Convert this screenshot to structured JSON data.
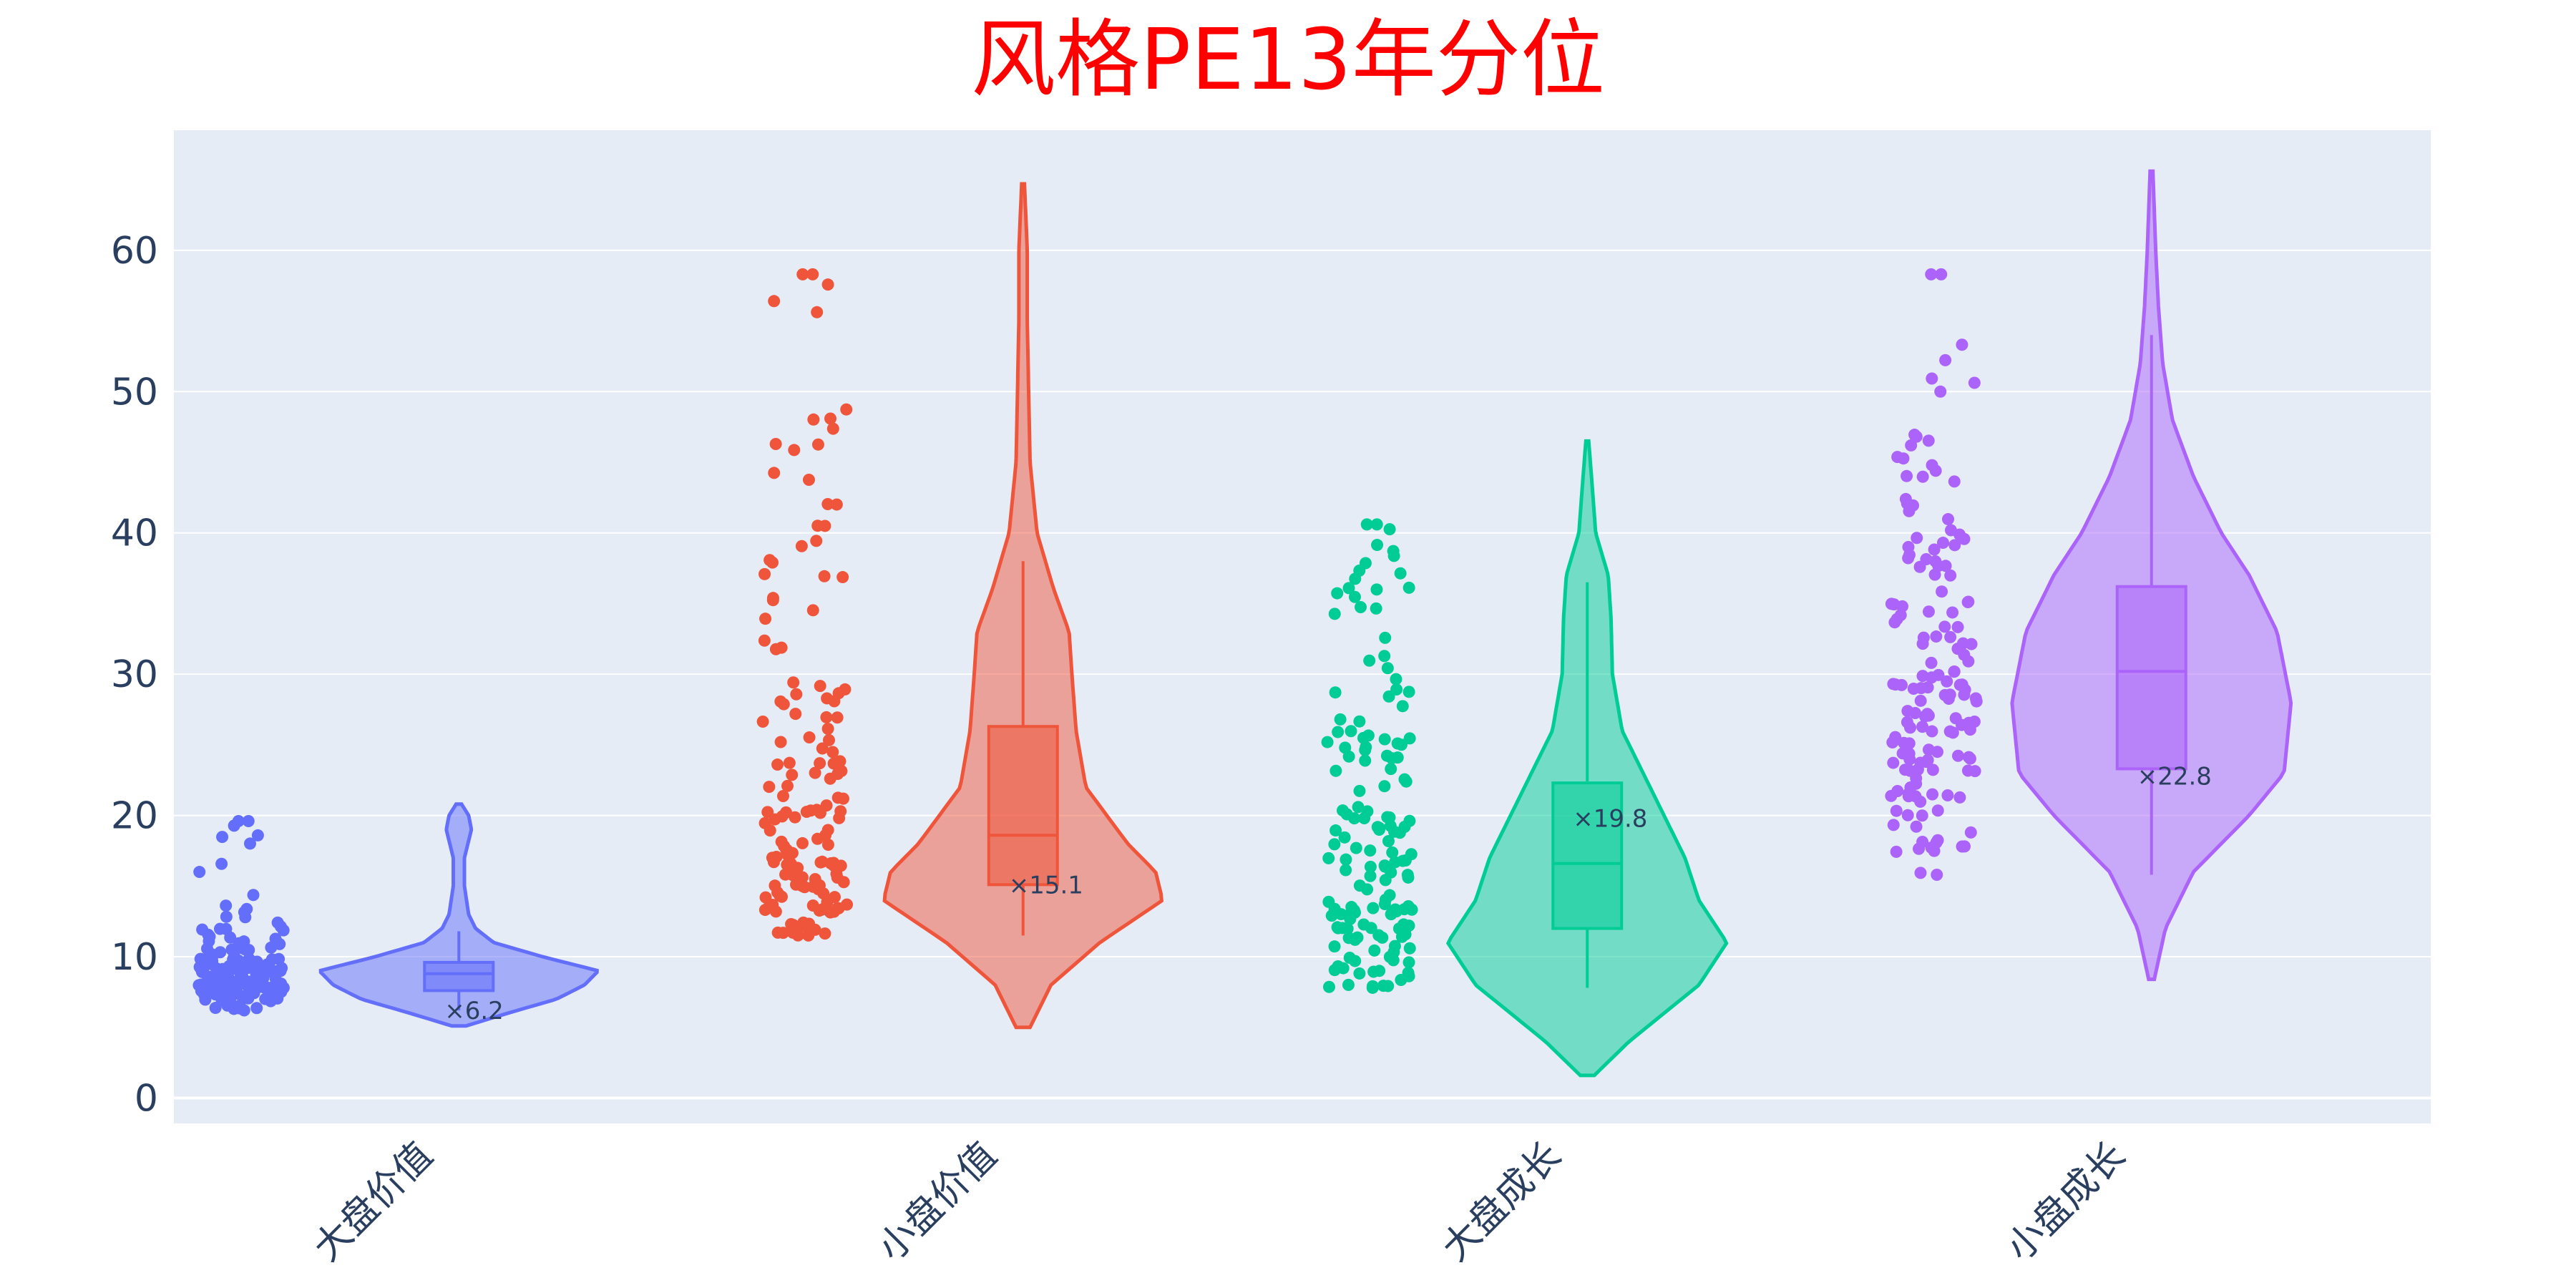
{
  "chart_data": {
    "type": "violin",
    "title": "风格PE13年分位",
    "xlabel": "",
    "ylabel": "",
    "ylim": [
      -1.8,
      68.5
    ],
    "y_ticks": [
      0,
      10,
      20,
      30,
      40,
      50,
      60
    ],
    "categories": [
      "大盘价值",
      "小盘价值",
      "大盘成长",
      "小盘成长"
    ],
    "grid": true,
    "series": [
      {
        "category": "大盘价值",
        "color": "#636efa",
        "violin_min": 5.1,
        "violin_max": 20.8,
        "box": {
          "q1": 7.6,
          "median": 8.8,
          "q3": 9.6,
          "whisker_low": 6.2,
          "whisker_high": 11.8
        },
        "min_label": "×6.2",
        "points_range": [
          6.2,
          19.6
        ],
        "density": [
          [
            5.1,
            0.05
          ],
          [
            6,
            0.35
          ],
          [
            7,
            0.7
          ],
          [
            8,
            0.9
          ],
          [
            9,
            1.0
          ],
          [
            10,
            0.6
          ],
          [
            11,
            0.25
          ],
          [
            12,
            0.12
          ],
          [
            13,
            0.07
          ],
          [
            15,
            0.04
          ],
          [
            17,
            0.04
          ],
          [
            19,
            0.09
          ],
          [
            20,
            0.07
          ],
          [
            20.8,
            0.02
          ]
        ]
      },
      {
        "category": "小盘价值",
        "color": "#ef553b",
        "violin_min": 5.0,
        "violin_max": 64.7,
        "box": {
          "q1": 15.1,
          "median": 18.6,
          "q3": 26.3,
          "whisker_low": 11.5,
          "whisker_high": 38.0
        },
        "min_label": "×15.1",
        "points_range": [
          11.5,
          58.3
        ],
        "density": [
          [
            5,
            0.05
          ],
          [
            8,
            0.2
          ],
          [
            11,
            0.55
          ],
          [
            14,
            1.0
          ],
          [
            16,
            0.95
          ],
          [
            18,
            0.75
          ],
          [
            22,
            0.45
          ],
          [
            26,
            0.38
          ],
          [
            30,
            0.35
          ],
          [
            33,
            0.33
          ],
          [
            36,
            0.22
          ],
          [
            40,
            0.1
          ],
          [
            45,
            0.05
          ],
          [
            55,
            0.03
          ],
          [
            60,
            0.03
          ],
          [
            64.7,
            0.01
          ]
        ]
      },
      {
        "category": "大盘成长",
        "color": "#00cc96",
        "violin_min": 1.6,
        "violin_max": 46.5,
        "box": {
          "q1": 12.0,
          "median": 16.6,
          "q3": 22.3,
          "whisker_low": 7.8,
          "whisker_high": 36.5
        },
        "min_label": "×19.8",
        "points_range": [
          7.8,
          40.6
        ],
        "density": [
          [
            1.6,
            0.05
          ],
          [
            4,
            0.3
          ],
          [
            8,
            0.8
          ],
          [
            11,
            1.0
          ],
          [
            14,
            0.8
          ],
          [
            17,
            0.7
          ],
          [
            20,
            0.55
          ],
          [
            23,
            0.4
          ],
          [
            26,
            0.25
          ],
          [
            30,
            0.18
          ],
          [
            34,
            0.17
          ],
          [
            37,
            0.15
          ],
          [
            40,
            0.06
          ],
          [
            44,
            0.03
          ],
          [
            46.5,
            0.01
          ]
        ]
      },
      {
        "category": "小盘成长",
        "color": "#ab63fa",
        "violin_min": 8.4,
        "violin_max": 65.6,
        "box": {
          "q1": 23.3,
          "median": 30.2,
          "q3": 36.2,
          "whisker_low": 15.8,
          "whisker_high": 54.0
        },
        "min_label": "×22.8",
        "points_range": [
          15.8,
          58.3
        ],
        "density": [
          [
            8.4,
            0.02
          ],
          [
            12,
            0.1
          ],
          [
            16,
            0.3
          ],
          [
            20,
            0.7
          ],
          [
            23,
            0.95
          ],
          [
            28,
            1.0
          ],
          [
            33,
            0.9
          ],
          [
            37,
            0.7
          ],
          [
            40,
            0.5
          ],
          [
            44,
            0.3
          ],
          [
            48,
            0.15
          ],
          [
            52,
            0.08
          ],
          [
            56,
            0.05
          ],
          [
            60,
            0.03
          ],
          [
            65.6,
            0.01
          ]
        ]
      }
    ]
  }
}
